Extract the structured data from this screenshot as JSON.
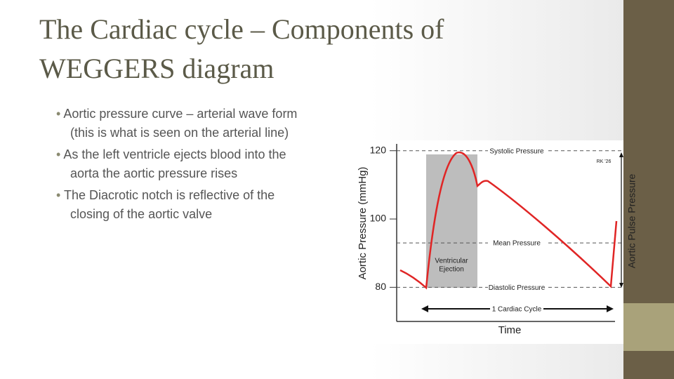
{
  "slide": {
    "title_lines": [
      "The Cardiac cycle – Components of",
      "WEGGERS diagram"
    ],
    "bullets": [
      [
        "Aortic pressure curve – arterial wave form",
        "(this is what is seen on the arterial line)"
      ],
      [
        "As the left ventricle ejects blood into  the",
        "aorta the aortic pressure rises"
      ],
      [
        "The Diacrotic notch is reflective of the",
        "closing of the aortic valve"
      ]
    ]
  },
  "chart_data": {
    "type": "line",
    "ylabel": "Aortic Pressure (mmHg)",
    "xlabel": "Time",
    "ylim": [
      70,
      122
    ],
    "yticks": [
      80,
      100,
      120
    ],
    "reference_lines": [
      {
        "label": "Systolic Pressure",
        "value": 120
      },
      {
        "label": "Mean Pressure",
        "value": 93
      },
      {
        "label": "Diastolic Pressure",
        "value": 80
      }
    ],
    "annotations": {
      "ejection": [
        "Ventricular",
        "Ejection"
      ],
      "cycle": "1 Cardiac Cycle",
      "pulse_pressure": "Aortic Pulse Pressure",
      "credit": "RK '26"
    }
  }
}
